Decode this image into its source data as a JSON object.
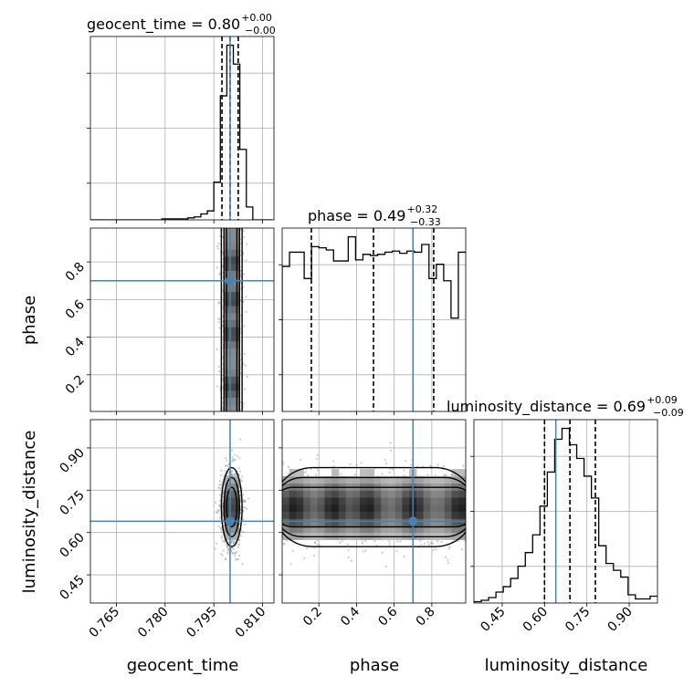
{
  "chart_data": {
    "type": "corner",
    "parameters": [
      "geocent_time",
      "phase",
      "luminosity_distance"
    ],
    "truths": {
      "geocent_time": 0.8,
      "phase": 0.7,
      "luminosity_distance": 0.64
    },
    "colors": {
      "truth": "#4682b4",
      "hist": "#000000",
      "grid": "#b0b0b0",
      "scatter": "#9a9a9a"
    },
    "grid": true,
    "titles": [
      {
        "main": "geocent_time = 0.80",
        "upper": "+0.00",
        "lower": "−0.00"
      },
      {
        "main": "phase = 0.49",
        "upper": "+0.32",
        "lower": "−0.33"
      },
      {
        "main": "luminosity_distance = 0.69",
        "upper": "+0.09",
        "lower": "−0.09"
      }
    ],
    "axis_labels": {
      "x": [
        "geocent_time",
        "phase",
        "luminosity_distance"
      ],
      "y": [
        "phase",
        "luminosity_distance"
      ]
    },
    "tick_labels": {
      "geocent_time": [
        "0.765",
        "0.780",
        "0.795",
        "0.810"
      ],
      "phase": [
        "0.2",
        "0.4",
        "0.6",
        "0.8"
      ],
      "luminosity_distance": [
        "0.45",
        "0.60",
        "0.75",
        "0.90"
      ]
    },
    "ranges": {
      "geocent_time": [
        0.757,
        0.8135
      ],
      "phase": [
        0.005,
        0.98
      ],
      "luminosity_distance": [
        0.35,
        1.0
      ]
    },
    "quantiles": {
      "geocent_time": [
        0.7975,
        0.8,
        0.8025
      ],
      "phase": [
        0.16,
        0.49,
        0.81
      ],
      "luminosity_distance": [
        0.6,
        0.69,
        0.78
      ]
    },
    "histograms": [
      {
        "param": "geocent_time",
        "bin_edges": [
          0.757,
          0.759,
          0.761,
          0.763,
          0.765,
          0.767,
          0.769,
          0.771,
          0.773,
          0.775,
          0.777,
          0.779,
          0.781,
          0.783,
          0.785,
          0.787,
          0.789,
          0.791,
          0.793,
          0.795,
          0.797,
          0.799,
          0.801,
          0.803,
          0.805,
          0.807,
          0.809,
          0.811,
          0.813
        ],
        "counts": [
          0,
          0,
          0,
          0,
          0,
          0,
          0,
          0,
          0,
          0,
          0,
          1,
          1,
          1,
          1,
          2,
          3,
          6,
          9,
          38,
          125,
          176,
          157,
          71,
          13,
          0,
          0,
          0
        ]
      },
      {
        "param": "phase",
        "bin_edges": [
          0.005,
          0.044,
          0.083,
          0.122,
          0.161,
          0.2,
          0.239,
          0.278,
          0.317,
          0.356,
          0.395,
          0.434,
          0.473,
          0.512,
          0.551,
          0.59,
          0.629,
          0.668,
          0.707,
          0.746,
          0.785,
          0.824,
          0.863,
          0.902,
          0.941,
          0.98
        ],
        "counts": [
          132,
          145,
          145,
          121,
          150,
          149,
          147,
          137,
          137,
          159,
          138,
          143,
          142,
          143,
          145,
          146,
          144,
          146,
          145,
          152,
          121,
          134,
          119,
          85,
          145
        ]
      },
      {
        "param": "luminosity_distance",
        "bin_edges": [
          0.35,
          0.376,
          0.402,
          0.428,
          0.454,
          0.48,
          0.506,
          0.532,
          0.558,
          0.584,
          0.61,
          0.636,
          0.662,
          0.688,
          0.714,
          0.74,
          0.766,
          0.792,
          0.818,
          0.844,
          0.87,
          0.896,
          0.922,
          0.948,
          0.974,
          1.0
        ],
        "counts": [
          1,
          2,
          4,
          8,
          12,
          18,
          27,
          37,
          50,
          71,
          96,
          120,
          128,
          116,
          106,
          93,
          77,
          42,
          29,
          24,
          19,
          6,
          3,
          3,
          5
        ]
      }
    ],
    "density_2d": [
      {
        "x": "geocent_time",
        "y": "phase",
        "x_center": 0.8005,
        "x_sigma": 0.0016,
        "y_range": [
          0.005,
          0.98
        ],
        "peaks_y": [
          0.14,
          0.42,
          0.6,
          0.8
        ]
      },
      {
        "x": "geocent_time",
        "y": "luminosity_distance",
        "x_center": 0.8005,
        "x_sigma": 0.0016,
        "y_center": 0.69,
        "y_sigma": 0.07
      },
      {
        "x": "phase",
        "y": "luminosity_distance",
        "y_center": 0.69,
        "y_sigma": 0.07,
        "peaks_x": [
          0.07,
          0.28,
          0.46,
          0.7,
          0.95
        ]
      }
    ]
  }
}
